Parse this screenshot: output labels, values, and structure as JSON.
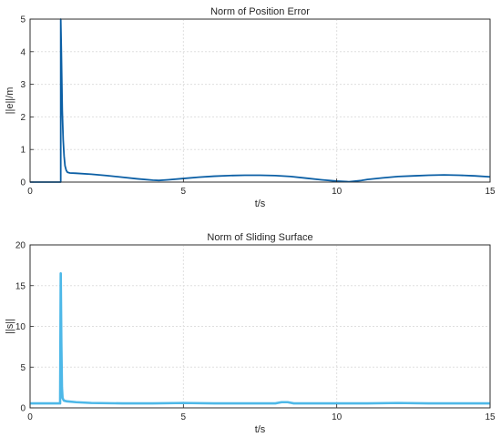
{
  "chart_data": [
    {
      "type": "line",
      "title": "Norm of Position Error",
      "xlabel": "t/s",
      "ylabel": "||e||/m",
      "xlim": [
        0,
        15
      ],
      "ylim": [
        0,
        5
      ],
      "xticks": [
        "0",
        "5",
        "10",
        "15"
      ],
      "yticks": [
        "0",
        "1",
        "2",
        "3",
        "4",
        "5"
      ],
      "grid": true,
      "color": "#0b5fa5",
      "series": [
        {
          "x": [
            0,
            0.99,
            1.0,
            1.0,
            1.02,
            1.05,
            1.08,
            1.11,
            1.14,
            1.18,
            1.22,
            1.3,
            1.5,
            2.0,
            2.5,
            3.0,
            3.5,
            4.0,
            4.2,
            4.5,
            5.0,
            5.5,
            6.0,
            6.5,
            7.0,
            7.5,
            8.0,
            8.5,
            9.0,
            9.5,
            10.0,
            10.4,
            10.8,
            11.0,
            11.5,
            12.0,
            12.5,
            13.0,
            13.5,
            14.0,
            14.5,
            15.0
          ],
          "y": [
            0,
            0,
            0,
            5.0,
            4.0,
            2.2,
            1.3,
            0.8,
            0.5,
            0.36,
            0.3,
            0.28,
            0.27,
            0.24,
            0.2,
            0.15,
            0.1,
            0.06,
            0.05,
            0.07,
            0.11,
            0.15,
            0.18,
            0.2,
            0.21,
            0.21,
            0.2,
            0.17,
            0.12,
            0.07,
            0.03,
            0.01,
            0.05,
            0.08,
            0.13,
            0.17,
            0.19,
            0.21,
            0.22,
            0.21,
            0.19,
            0.16
          ]
        }
      ]
    },
    {
      "type": "line",
      "title": "Norm of Sliding Surface",
      "xlabel": "t/s",
      "ylabel": "||s||",
      "xlim": [
        0,
        15
      ],
      "ylim": [
        0,
        20
      ],
      "xticks": [
        "0",
        "5",
        "10",
        "15"
      ],
      "yticks": [
        "0",
        "5",
        "10",
        "15",
        "20"
      ],
      "grid": true,
      "color": "#4db8e8",
      "series": [
        {
          "x": [
            0,
            0.5,
            0.98,
            1.0,
            1.02,
            1.04,
            1.06,
            1.1,
            1.2,
            1.5,
            2.0,
            3.0,
            4.0,
            5.0,
            6.0,
            7.0,
            8.0,
            8.2,
            8.4,
            8.6,
            9.0,
            10.0,
            11.0,
            12.0,
            13.0,
            14.0,
            15.0
          ],
          "y": [
            0.55,
            0.55,
            0.55,
            16.5,
            8.0,
            2.5,
            1.2,
            0.9,
            0.8,
            0.7,
            0.6,
            0.55,
            0.55,
            0.6,
            0.55,
            0.55,
            0.55,
            0.7,
            0.7,
            0.55,
            0.55,
            0.55,
            0.55,
            0.6,
            0.55,
            0.55,
            0.55
          ]
        }
      ]
    }
  ]
}
